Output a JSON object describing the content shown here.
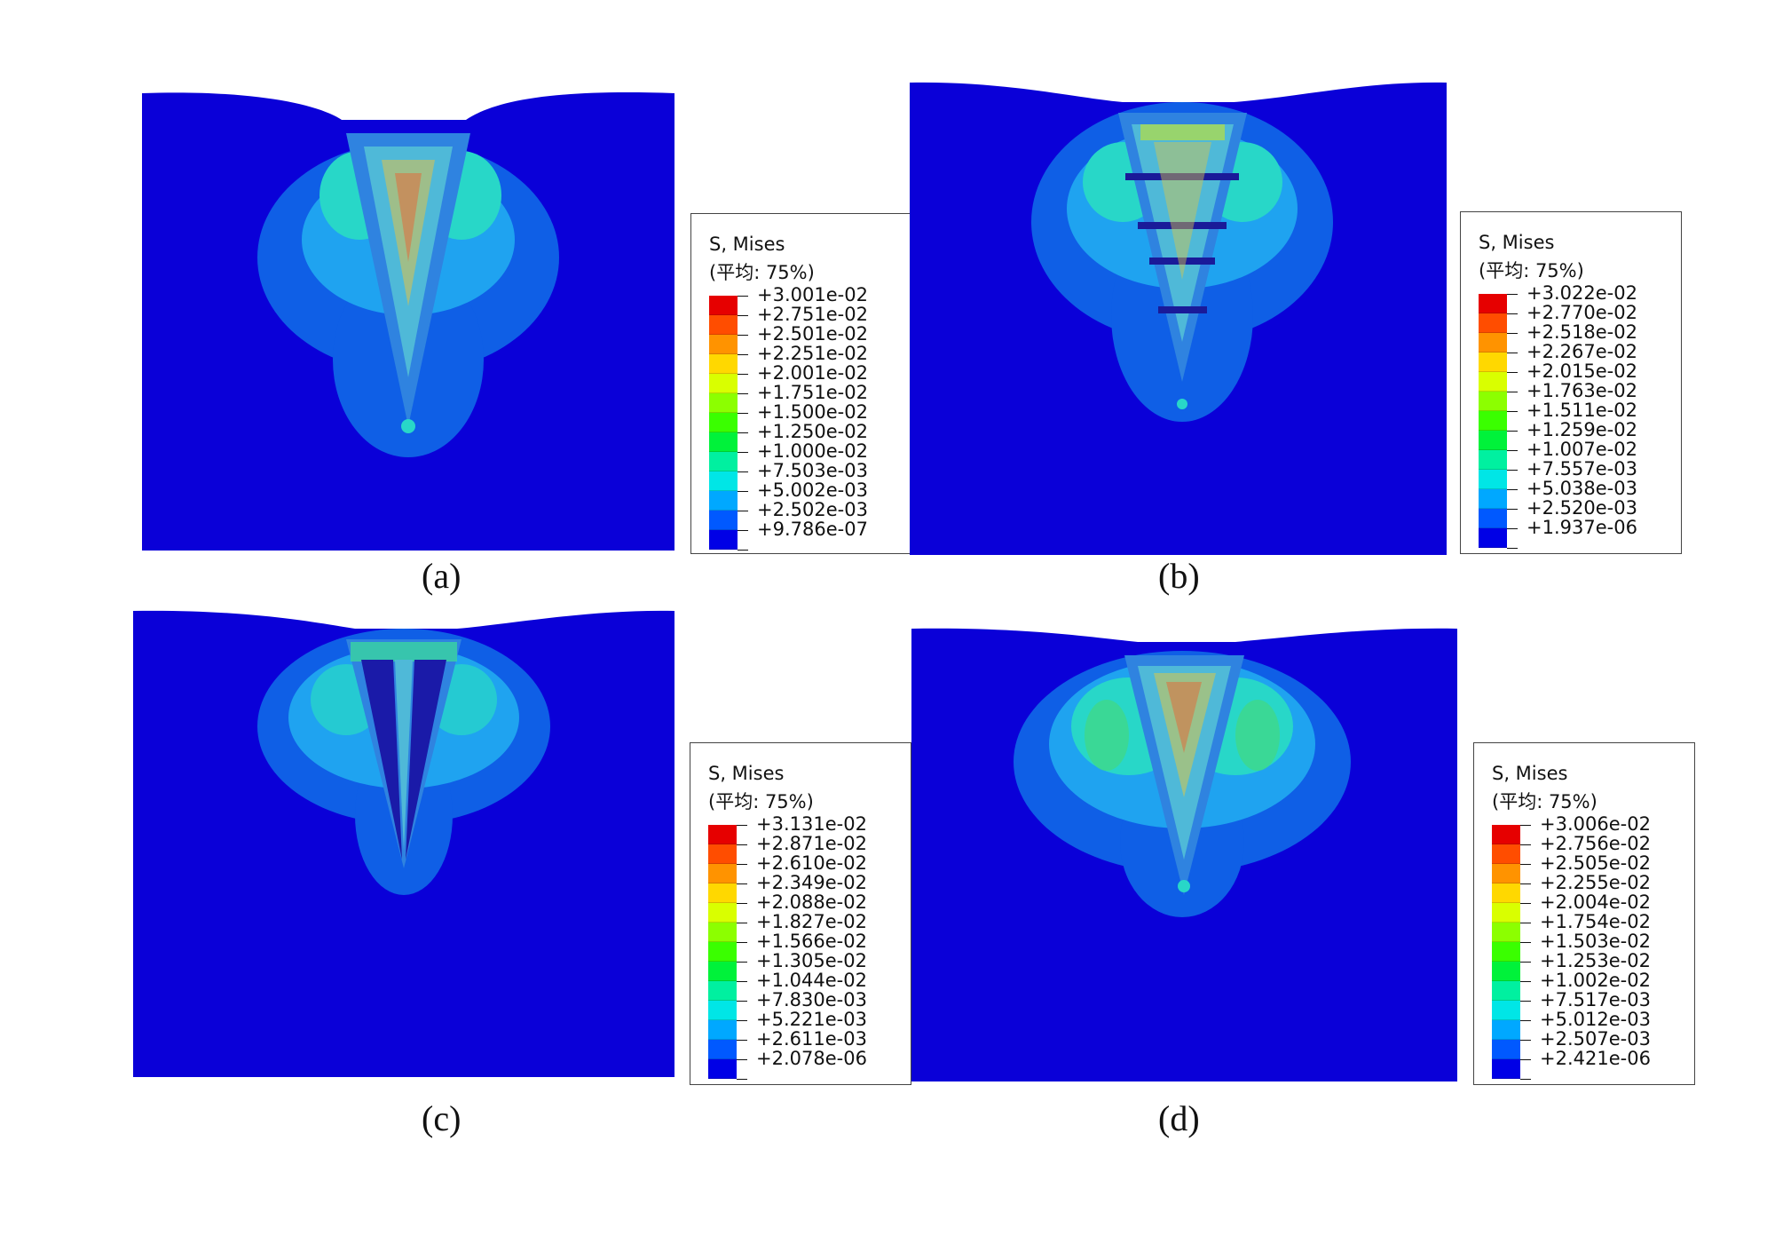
{
  "legend_colors": [
    "#e60000",
    "#ff4d00",
    "#ff9300",
    "#ffd800",
    "#d9ff00",
    "#8cff00",
    "#3aff00",
    "#00f23a",
    "#00f0a0",
    "#00e6e6",
    "#00a8ff",
    "#0059ff",
    "#0000e6"
  ],
  "panels": [
    {
      "caption": "(a)",
      "legend": {
        "title": "S, Mises",
        "subtitle": "(平均: 75%)",
        "values": [
          "+3.001e-02",
          "+2.751e-02",
          "+2.501e-02",
          "+2.251e-02",
          "+2.001e-02",
          "+1.751e-02",
          "+1.500e-02",
          "+1.250e-02",
          "+1.000e-02",
          "+7.503e-03",
          "+5.002e-03",
          "+2.502e-03",
          "+9.786e-07"
        ]
      }
    },
    {
      "caption": "(b)",
      "legend": {
        "title": "S, Mises",
        "subtitle": "(平均: 75%)",
        "values": [
          "+3.022e-02",
          "+2.770e-02",
          "+2.518e-02",
          "+2.267e-02",
          "+2.015e-02",
          "+1.763e-02",
          "+1.511e-02",
          "+1.259e-02",
          "+1.007e-02",
          "+7.557e-03",
          "+5.038e-03",
          "+2.520e-03",
          "+1.937e-06"
        ]
      }
    },
    {
      "caption": "(c)",
      "legend": {
        "title": "S, Mises",
        "subtitle": "(平均: 75%)",
        "values": [
          "+3.131e-02",
          "+2.871e-02",
          "+2.610e-02",
          "+2.349e-02",
          "+2.088e-02",
          "+1.827e-02",
          "+1.566e-02",
          "+1.305e-02",
          "+1.044e-02",
          "+7.830e-03",
          "+5.221e-03",
          "+2.611e-03",
          "+2.078e-06"
        ]
      }
    },
    {
      "caption": "(d)",
      "legend": {
        "title": "S, Mises",
        "subtitle": "(平均: 75%)",
        "values": [
          "+3.006e-02",
          "+2.756e-02",
          "+2.505e-02",
          "+2.255e-02",
          "+2.004e-02",
          "+1.754e-02",
          "+1.503e-02",
          "+1.253e-02",
          "+1.002e-02",
          "+7.517e-03",
          "+5.012e-03",
          "+2.507e-03",
          "+2.421e-06"
        ]
      }
    }
  ]
}
